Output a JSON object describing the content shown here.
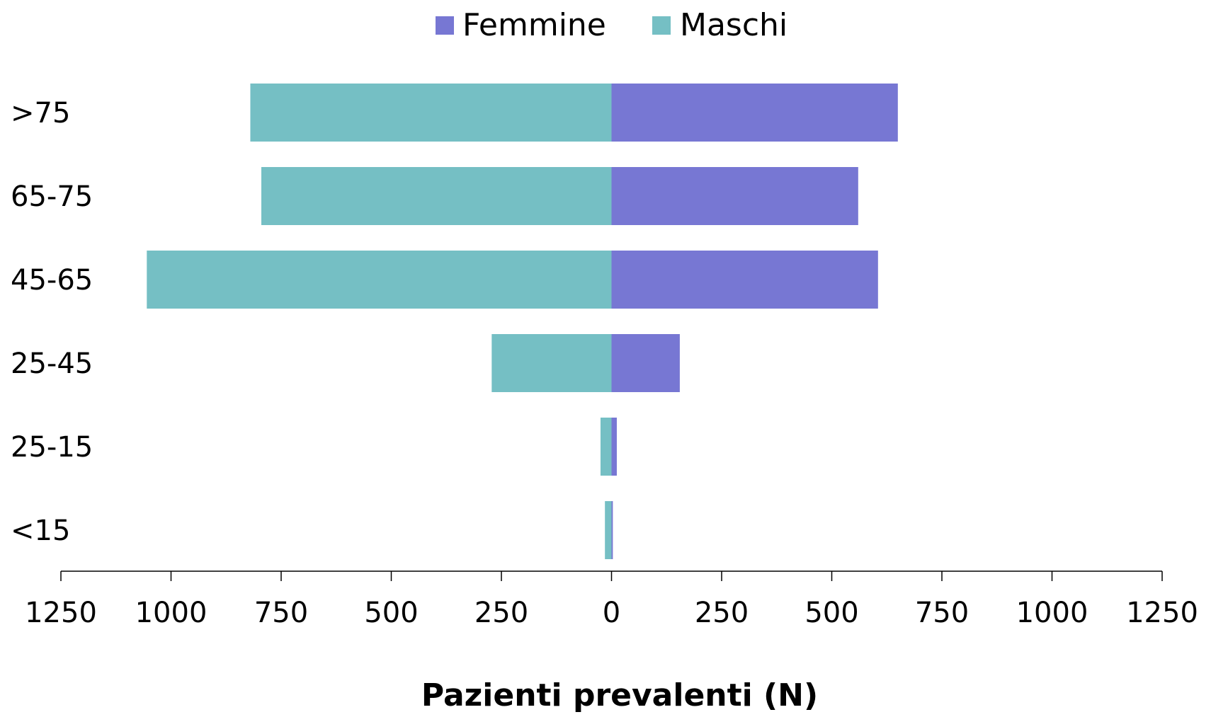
{
  "chart_data": {
    "type": "bar",
    "orientation": "horizontal-population-pyramid",
    "title": "",
    "xlabel": "Pazienti prevalenti (N)",
    "ylabel": "",
    "categories": [
      ">75",
      "65-75",
      "45-65",
      "25-45",
      "25-15",
      "<15"
    ],
    "series": [
      {
        "name": "Femmine",
        "color": "#7777D3",
        "side": "right",
        "values": [
          650,
          560,
          605,
          155,
          12,
          3
        ]
      },
      {
        "name": "Maschi",
        "color": "#75BFC4",
        "side": "left",
        "values": [
          820,
          795,
          1055,
          272,
          25,
          15
        ]
      }
    ],
    "xlim": [
      -1250,
      1250
    ],
    "x_tick_values": [
      -1250,
      -1000,
      -750,
      -500,
      -250,
      0,
      250,
      500,
      750,
      1000,
      1250
    ],
    "x_tick_labels": [
      "1250",
      "1000",
      "750",
      "500",
      "250",
      "0",
      "250",
      "500",
      "750",
      "1000",
      "1250"
    ],
    "legend": {
      "position": "top-center",
      "items": [
        {
          "label": "Femmine",
          "color": "#7777D3"
        },
        {
          "label": "Maschi",
          "color": "#75BFC4"
        }
      ]
    },
    "grid": false
  }
}
